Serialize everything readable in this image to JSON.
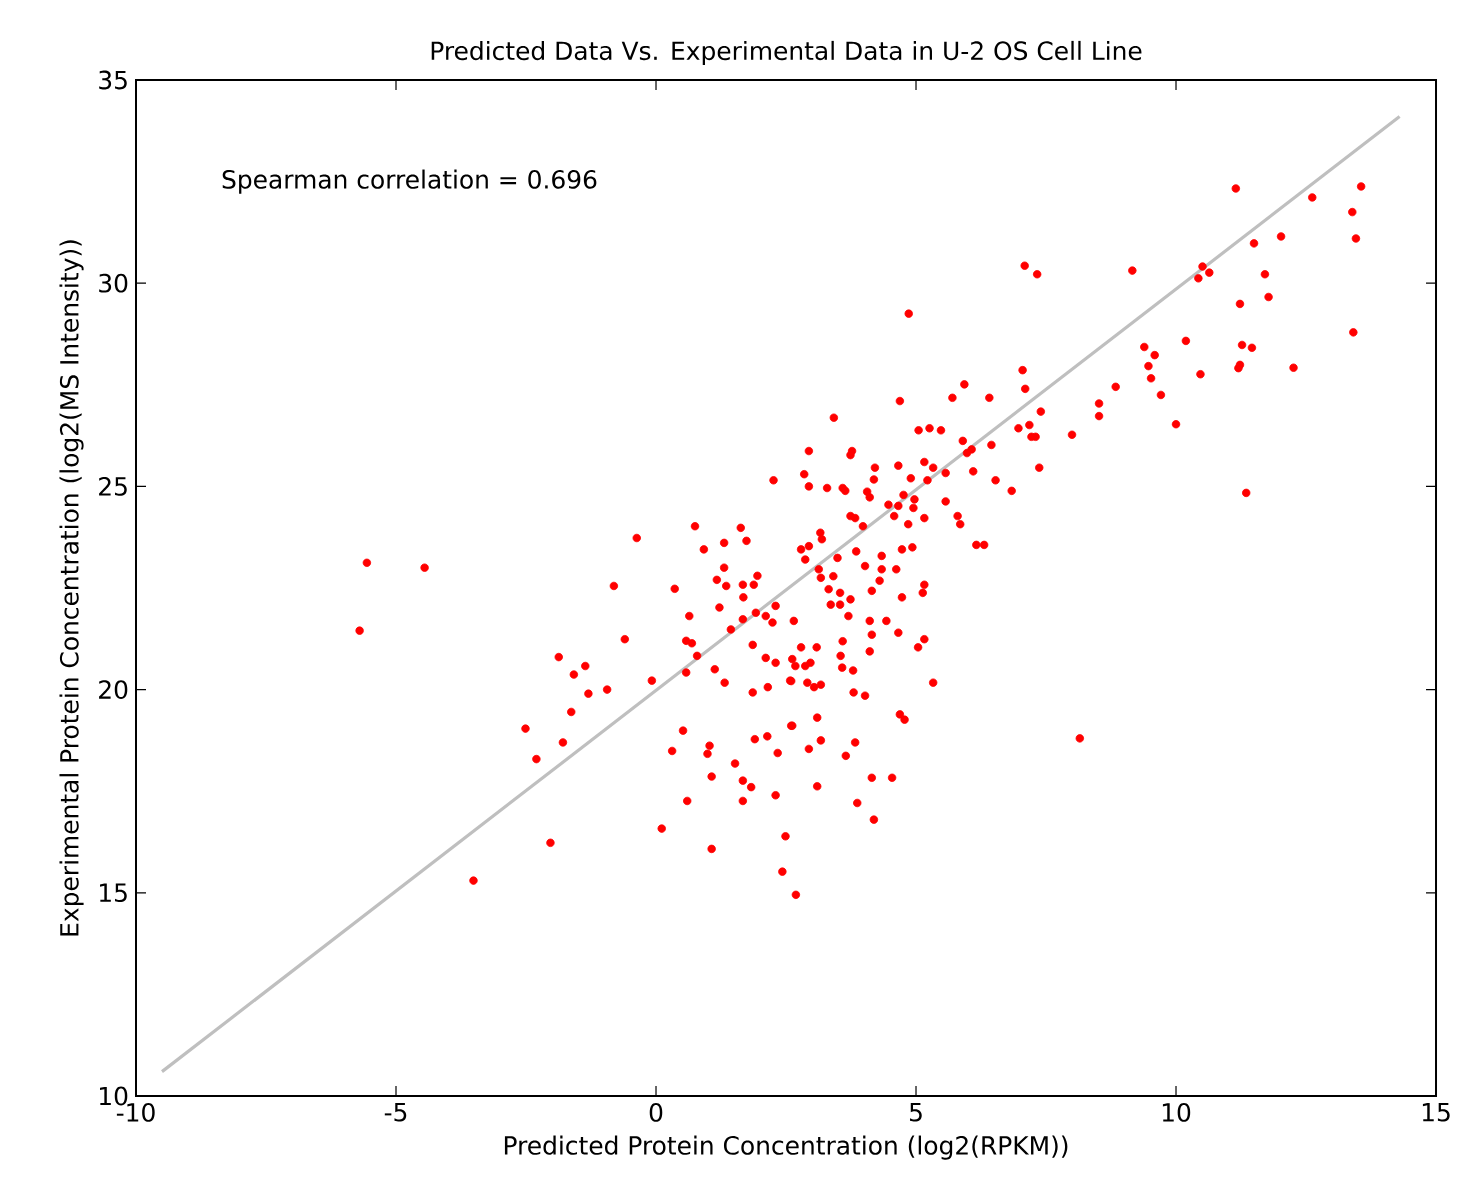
{
  "chart_data": {
    "type": "scatter",
    "title": "Predicted Data Vs. Experimental Data in U-2 OS Cell Line",
    "xlabel": "Predicted Protein Concentration (log2(RPKM))",
    "ylabel": "Experimental Protein Concentration (log2(MS Intensity))",
    "annotations": [
      "Spearman correlation = 0.696"
    ],
    "marker": "circle",
    "xlim": [
      -10,
      15
    ],
    "ylim": [
      10,
      35
    ],
    "xticks": [
      -10,
      -5,
      0,
      5,
      10,
      15
    ],
    "yticks": [
      10,
      15,
      20,
      25,
      30,
      35
    ],
    "series": [
      {
        "color": "#ff0000",
        "x": [
          -5.56,
          -4.45,
          -5.7,
          -3.51,
          -0.81,
          0.36,
          1.31,
          1.17,
          1.35,
          1.67,
          1.88,
          1.95,
          1.68,
          0.64,
          1.22,
          1.67,
          1.92,
          2.11,
          2.3,
          2.24,
          1.44,
          -0.6,
          0.58,
          0.69,
          1.86,
          0.79,
          2.11,
          2.3,
          -1.87,
          -1.36,
          -1.58,
          1.13,
          0.58,
          -0.94,
          -1.3,
          -0.08,
          1.32,
          1.86,
          2.15,
          2.58,
          -1.63,
          -2.51,
          -1.79,
          -2.3,
          0.52,
          0.31,
          1.03,
          0.99,
          1.9,
          2.14,
          2.34,
          2.6,
          1.07,
          1.52,
          1.67,
          1.83,
          0.6,
          1.67,
          2.3,
          0.11,
          -2.03,
          1.07,
          2.49,
          2.43,
          2.69,
          2.26,
          -0.37,
          0.75,
          0.92,
          1.31,
          1.63,
          1.74,
          11.15,
          12.62,
          13.56,
          13.39,
          13.46,
          11.5,
          12.02,
          7.09,
          7.33,
          9.16,
          10.51,
          10.43,
          10.64,
          11.71,
          11.78,
          11.23,
          4.86,
          13.41,
          9.39,
          9.59,
          9.47,
          9.52,
          10.19,
          10.47,
          9.71,
          10.0,
          11.27,
          11.46,
          11.23,
          11.2,
          12.26,
          11.35,
          8.84,
          8.52,
          8.52,
          8.0,
          7.05,
          7.1,
          7.4,
          6.97,
          7.18,
          7.22,
          7.3,
          7.37,
          6.84,
          6.53,
          5.93,
          5.7,
          6.41,
          4.69,
          3.42,
          5.05,
          5.26,
          5.48,
          5.9,
          6.07,
          5.98,
          6.45,
          2.94,
          3.77,
          3.74,
          2.85,
          2.94,
          3.29,
          3.59,
          3.64,
          4.21,
          4.19,
          4.66,
          5.16,
          5.33,
          5.57,
          6.1,
          4.9,
          5.22,
          4.06,
          4.11,
          4.76,
          4.47,
          4.66,
          4.97,
          4.95,
          5.57,
          4.58,
          4.85,
          5.16,
          3.74,
          3.83,
          3.98,
          5.8,
          5.85,
          6.16,
          6.31,
          4.73,
          4.93,
          4.34,
          3.85,
          2.79,
          2.94,
          3.16,
          3.19,
          2.87,
          3.49,
          4.02,
          4.34,
          4.62,
          3.13,
          3.41,
          4.3,
          3.17,
          3.32,
          3.54,
          3.74,
          3.54,
          3.36,
          4.15,
          4.73,
          5.16,
          5.13,
          2.65,
          3.7,
          4.11,
          4.15,
          4.43,
          4.66,
          3.59,
          2.79,
          3.09,
          4.11,
          3.55,
          3.58,
          3.79,
          2.62,
          2.68,
          2.87,
          2.97,
          5.04,
          5.16,
          2.6,
          2.91,
          3.04,
          3.17,
          3.8,
          4.02,
          5.33,
          3.1,
          2.62,
          4.69,
          4.78,
          2.94,
          3.17,
          3.65,
          3.83,
          8.15,
          3.1,
          4.15,
          4.54,
          3.87,
          4.19
        ],
        "values": [
          23.12,
          23.0,
          21.45,
          15.3,
          22.55,
          22.48,
          23.0,
          22.7,
          22.55,
          22.58,
          22.58,
          22.8,
          22.27,
          21.81,
          22.02,
          21.73,
          21.89,
          21.81,
          22.06,
          21.65,
          21.48,
          21.24,
          21.2,
          21.14,
          21.1,
          20.83,
          20.78,
          20.66,
          20.8,
          20.58,
          20.37,
          20.5,
          20.42,
          20.0,
          19.9,
          20.22,
          20.17,
          19.93,
          20.06,
          20.22,
          19.45,
          19.04,
          18.7,
          18.29,
          18.99,
          18.49,
          18.62,
          18.42,
          18.78,
          18.85,
          18.44,
          19.11,
          17.86,
          18.18,
          17.76,
          17.6,
          17.26,
          17.26,
          17.4,
          16.58,
          16.23,
          16.08,
          16.39,
          15.52,
          14.95,
          25.15,
          23.73,
          24.02,
          23.45,
          23.61,
          23.98,
          23.66,
          32.33,
          32.11,
          32.38,
          31.75,
          31.1,
          30.98,
          31.15,
          30.43,
          30.22,
          30.31,
          30.41,
          30.12,
          30.26,
          30.22,
          29.66,
          29.49,
          29.25,
          28.79,
          28.43,
          28.23,
          27.96,
          27.66,
          28.58,
          27.76,
          27.25,
          26.53,
          28.48,
          28.41,
          27.99,
          27.91,
          27.92,
          24.84,
          27.45,
          27.04,
          26.73,
          26.27,
          27.86,
          27.4,
          26.84,
          26.43,
          26.51,
          26.22,
          26.22,
          25.46,
          24.89,
          25.15,
          27.51,
          27.18,
          27.18,
          27.1,
          26.69,
          26.38,
          26.43,
          26.38,
          26.12,
          25.91,
          25.82,
          26.02,
          25.87,
          25.87,
          25.77,
          25.3,
          25.0,
          24.96,
          24.96,
          24.89,
          25.46,
          25.17,
          25.51,
          25.6,
          25.46,
          25.33,
          25.37,
          25.2,
          25.15,
          24.87,
          24.73,
          24.79,
          24.55,
          24.52,
          24.68,
          24.47,
          24.63,
          24.27,
          24.07,
          24.22,
          24.27,
          24.22,
          24.02,
          24.27,
          24.07,
          23.56,
          23.56,
          23.45,
          23.5,
          23.29,
          23.4,
          23.45,
          23.53,
          23.86,
          23.7,
          23.2,
          23.24,
          23.04,
          22.96,
          22.96,
          22.96,
          22.79,
          22.68,
          22.75,
          22.47,
          22.38,
          22.22,
          22.09,
          22.09,
          22.43,
          22.27,
          22.58,
          22.38,
          21.69,
          21.81,
          21.69,
          21.35,
          21.69,
          21.4,
          21.19,
          21.04,
          21.04,
          20.94,
          20.83,
          20.54,
          20.47,
          20.75,
          20.58,
          20.58,
          20.66,
          21.04,
          21.24,
          20.21,
          20.17,
          20.06,
          20.12,
          19.93,
          19.85,
          20.17,
          19.31,
          19.11,
          19.39,
          19.26,
          18.54,
          18.75,
          18.37,
          18.7,
          18.8,
          17.62,
          17.83,
          17.83,
          17.21,
          16.8
        ]
      },
      {
        "type": "line",
        "marker": "none",
        "color": "#bfbfbf",
        "x": [
          -9.5,
          14.3
        ],
        "values": [
          10.6,
          34.1
        ]
      }
    ]
  }
}
